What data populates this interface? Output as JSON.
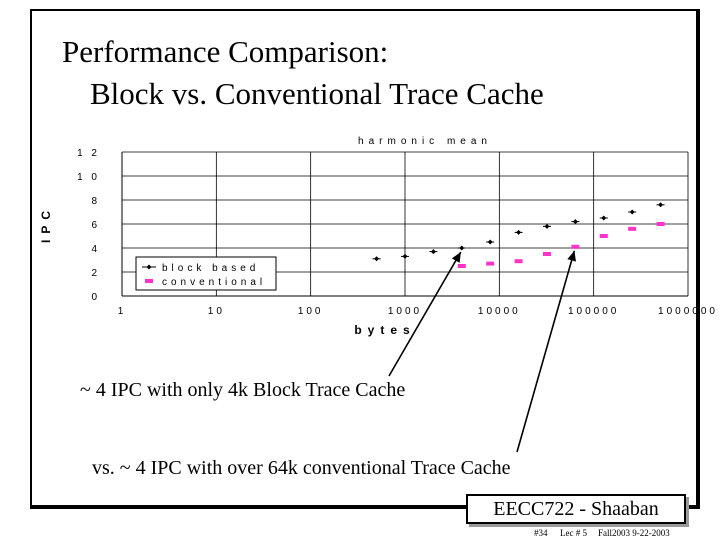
{
  "slide": {
    "title_line1": "Performance Comparison:",
    "title_line2": "Block vs. Conventional Trace Cache",
    "annotation1": "~ 4 IPC with only 4k Block Trace Cache",
    "annotation2": "vs. ~ 4 IPC  with over 64k conventional Trace Cache",
    "badge": "EECC722 - Shaaban",
    "footer_slide": "#34",
    "footer_lecture": "Lec # 5",
    "footer_date": "Fall2003 9-22-2003"
  },
  "chart_data": {
    "type": "scatter",
    "title": "harmonic mean",
    "xlabel": "bytes",
    "ylabel": "IPC",
    "x_scale": "log",
    "xlim": [
      1,
      1000000
    ],
    "ylim": [
      0,
      12
    ],
    "x_tick_labels": [
      "1",
      "10",
      "100",
      "1000",
      "10000",
      "100000",
      "1000000"
    ],
    "y_tick_labels": [
      "0",
      "2",
      "4",
      "6",
      "8",
      "10",
      "12"
    ],
    "grid": true,
    "legend_position": "bottom-left",
    "colors": {
      "block": "#000000",
      "conventional": "#ff33cc"
    },
    "series": [
      {
        "name": "block based",
        "x": [
          500,
          1000,
          2000,
          4000,
          8000,
          16000,
          32000,
          64000,
          128000,
          256000,
          512000
        ],
        "y": [
          3.1,
          3.3,
          3.7,
          4.0,
          4.5,
          5.3,
          5.8,
          6.2,
          6.5,
          7.0,
          7.6
        ]
      },
      {
        "name": "conventional",
        "x": [
          4000,
          8000,
          16000,
          32000,
          64000,
          128000,
          256000,
          512000
        ],
        "y": [
          2.5,
          2.7,
          2.9,
          3.5,
          4.1,
          5.0,
          5.6,
          6.0
        ]
      }
    ]
  }
}
